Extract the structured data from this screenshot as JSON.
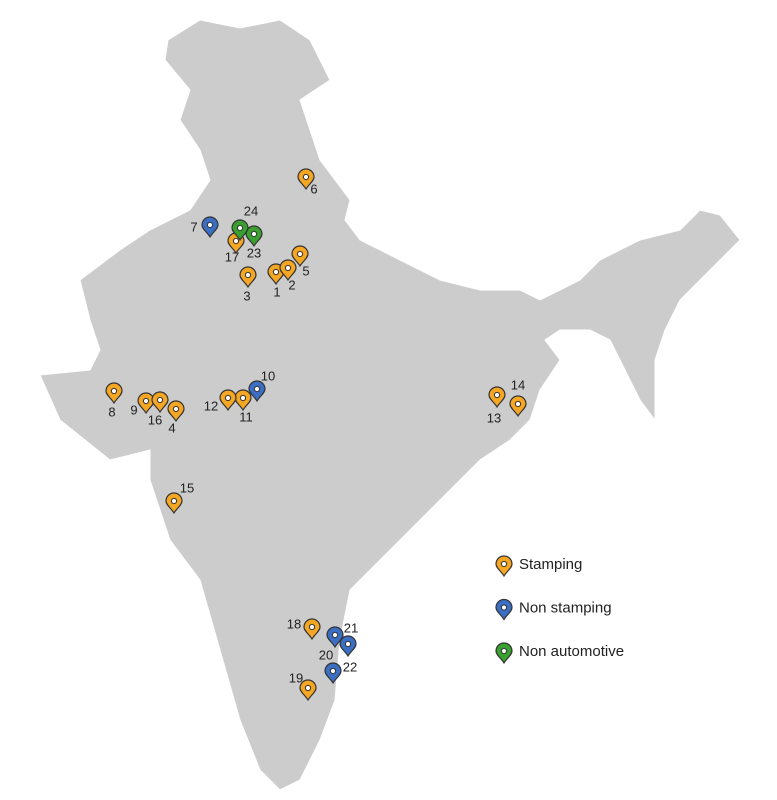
{
  "legend": [
    {
      "label": "Stamping",
      "color": "#f5a623"
    },
    {
      "label": "Non stamping",
      "color": "#3a6fc4"
    },
    {
      "label": "Non automotive",
      "color": "#3aa030"
    }
  ],
  "pins": [
    {
      "label": "1",
      "category": "Stamping"
    },
    {
      "label": "2",
      "category": "Stamping"
    },
    {
      "label": "3",
      "category": "Stamping"
    },
    {
      "label": "4",
      "category": "Stamping"
    },
    {
      "label": "5",
      "category": "Stamping"
    },
    {
      "label": "6",
      "category": "Stamping"
    },
    {
      "label": "7",
      "category": "Non stamping"
    },
    {
      "label": "8",
      "category": "Stamping"
    },
    {
      "label": "9",
      "category": "Stamping"
    },
    {
      "label": "10",
      "category": "Non stamping"
    },
    {
      "label": "11",
      "category": "Stamping"
    },
    {
      "label": "12",
      "category": "Stamping"
    },
    {
      "label": "13",
      "category": "Stamping"
    },
    {
      "label": "14",
      "category": "Stamping"
    },
    {
      "label": "15",
      "category": "Stamping"
    },
    {
      "label": "16",
      "category": "Stamping"
    },
    {
      "label": "17",
      "category": "Stamping"
    },
    {
      "label": "18",
      "category": "Stamping"
    },
    {
      "label": "19",
      "category": "Stamping"
    },
    {
      "label": "20",
      "category": "Non stamping"
    },
    {
      "label": "21",
      "category": "Non stamping"
    },
    {
      "label": "22",
      "category": "Non stamping"
    },
    {
      "label": "23",
      "category": "Non automotive"
    },
    {
      "label": "24",
      "category": "Non automotive"
    }
  ]
}
